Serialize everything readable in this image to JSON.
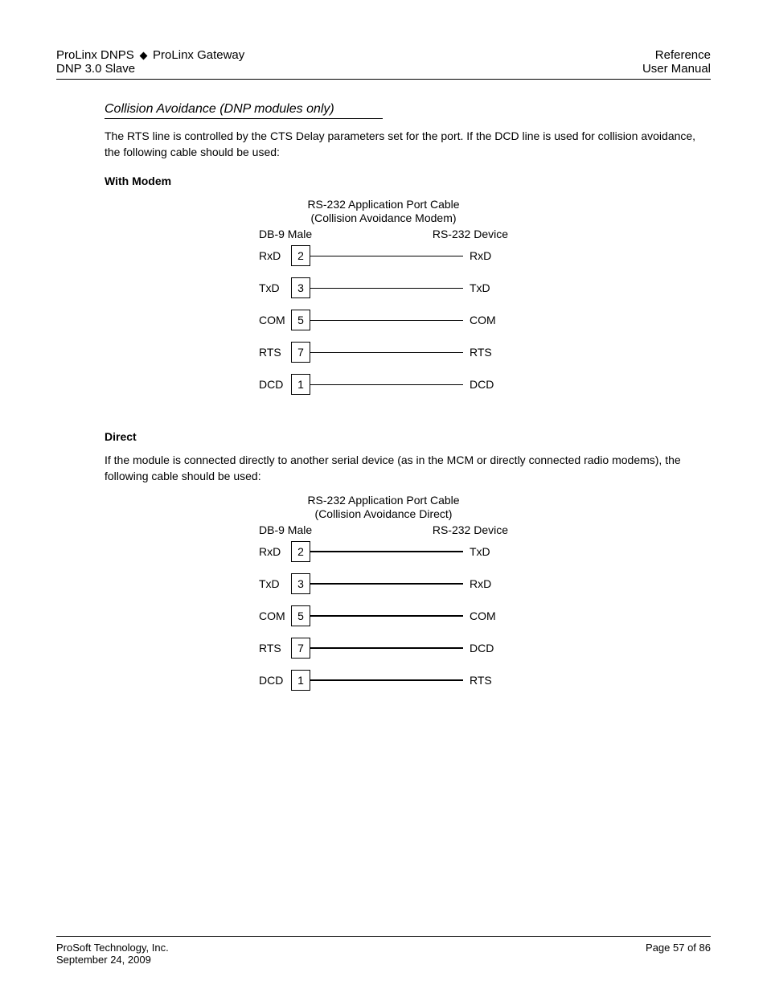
{
  "header": {
    "left_line1_a": "ProLinx DNPS",
    "left_line1_b": "ProLinx Gateway",
    "left_line2": "DNP 3.0 Slave",
    "right_line1": "Reference",
    "right_line2": "User Manual"
  },
  "section": {
    "title": "Collision Avoidance (DNP modules only)",
    "intro": "The RTS line is controlled by the CTS Delay parameters set for the port. If the DCD line is used for collision avoidance, the following cable should be used:",
    "modem_heading": "With Modem",
    "direct_heading": "Direct",
    "direct_intro": "If the module is connected directly to another serial device (as in the MCM or directly connected radio modems), the following cable should be used:"
  },
  "diagram_modem": {
    "title": "RS-232 Application Port Cable",
    "subtitle": "(Collision Avoidance Modem)",
    "left_header": "DB-9 Male",
    "right_header": "RS-232 Device",
    "rows": [
      {
        "left": "RxD",
        "pin": "2",
        "right": "RxD"
      },
      {
        "left": "TxD",
        "pin": "3",
        "right": "TxD"
      },
      {
        "left": "COM",
        "pin": "5",
        "right": "COM"
      },
      {
        "left": "RTS",
        "pin": "7",
        "right": "RTS"
      },
      {
        "left": "DCD",
        "pin": "1",
        "right": "DCD"
      }
    ]
  },
  "diagram_direct": {
    "title": "RS-232 Application Port Cable",
    "subtitle": "(Collision Avoidance Direct)",
    "left_header": "DB-9 Male",
    "right_header": "RS-232 Device",
    "rows": [
      {
        "left": "RxD",
        "pin": "2",
        "right": "TxD"
      },
      {
        "left": "TxD",
        "pin": "3",
        "right": "RxD"
      },
      {
        "left": "COM",
        "pin": "5",
        "right": "COM"
      },
      {
        "left": "RTS",
        "pin": "7",
        "right": "DCD"
      },
      {
        "left": "DCD",
        "pin": "1",
        "right": "RTS"
      }
    ]
  },
  "footer": {
    "left_line1": "ProSoft Technology, Inc.",
    "left_line2": "September 24, 2009",
    "right_line1": "Page 57 of 86"
  },
  "colors": {
    "text": "#000000",
    "background": "#ffffff",
    "line": "#000000"
  }
}
